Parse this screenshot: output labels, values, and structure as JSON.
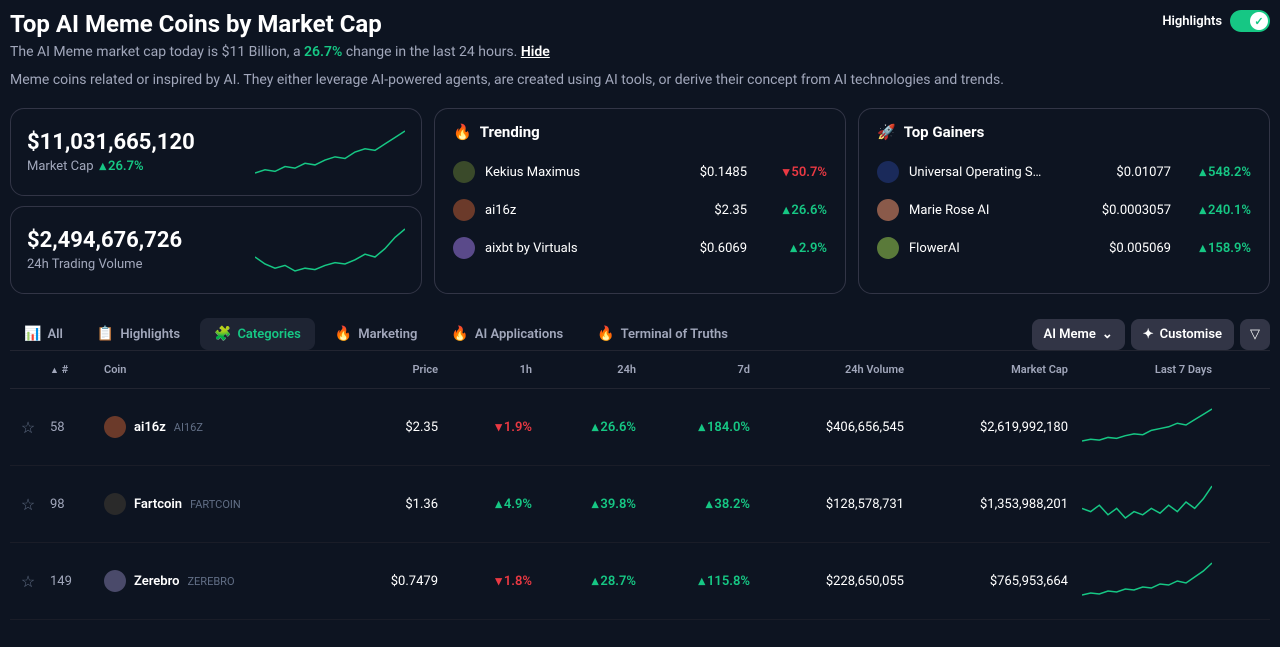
{
  "colors": {
    "bg": "#0d1421",
    "text": "#eef2f5",
    "muted": "#a1a7bb",
    "border": "#323546",
    "up": "#16c784",
    "down": "#ea3943",
    "pill": "#323546"
  },
  "header": {
    "title": "Top AI Meme Coins by Market Cap",
    "subtitle_pre": "The AI Meme market cap today is $11 Billion, a ",
    "subtitle_pct": "26.7%",
    "subtitle_post": " change in the last 24 hours. ",
    "hide": "Hide",
    "desc": "Meme coins related or inspired by AI. They either leverage AI-powered agents, are created using AI tools, or derive their concept from AI technologies and trends.",
    "highlights_label": "Highlights"
  },
  "stats": {
    "marketcap": {
      "value": "$11,031,665,120",
      "label": "Market Cap",
      "change": "26.7%",
      "dir": "up",
      "spark": [
        20,
        22,
        21,
        24,
        23,
        26,
        25,
        28,
        30,
        29,
        33,
        35,
        34,
        38,
        42,
        46
      ]
    },
    "volume": {
      "value": "$2,494,676,726",
      "label": "24h Trading Volume",
      "spark": [
        30,
        25,
        22,
        24,
        20,
        22,
        21,
        24,
        26,
        25,
        28,
        32,
        30,
        36,
        44,
        50
      ]
    }
  },
  "trending": {
    "title": "Trending",
    "icon": "🔥",
    "items": [
      {
        "name": "Kekius Maximus",
        "price": "$0.1485",
        "change": "50.7%",
        "dir": "down",
        "iconbg": "#3a4a2a"
      },
      {
        "name": "ai16z",
        "price": "$2.35",
        "change": "26.6%",
        "dir": "up",
        "iconbg": "#6b3a2a"
      },
      {
        "name": "aixbt by Virtuals",
        "price": "$0.6069",
        "change": "2.9%",
        "dir": "up",
        "iconbg": "#5a4a8a"
      }
    ]
  },
  "gainers": {
    "title": "Top Gainers",
    "icon": "🚀",
    "items": [
      {
        "name": "Universal Operating S…",
        "price": "$0.01077",
        "change": "548.2%",
        "dir": "up",
        "iconbg": "#1a2a5a"
      },
      {
        "name": "Marie Rose AI",
        "price": "$0.0003057",
        "change": "240.1%",
        "dir": "up",
        "iconbg": "#8a5a4a"
      },
      {
        "name": "FlowerAI",
        "price": "$0.005069",
        "change": "158.9%",
        "dir": "up",
        "iconbg": "#5a7a3a"
      }
    ]
  },
  "tabs": {
    "items": [
      {
        "id": "all",
        "label": "All",
        "icon": "📊"
      },
      {
        "id": "highlights",
        "label": "Highlights",
        "icon": "📋"
      },
      {
        "id": "categories",
        "label": "Categories",
        "icon": "🧩",
        "active": true
      },
      {
        "id": "marketing",
        "label": "Marketing",
        "icon": "🔥"
      },
      {
        "id": "ai-apps",
        "label": "AI Applications",
        "icon": "🔥"
      },
      {
        "id": "terminal",
        "label": "Terminal of Truths",
        "icon": "🔥"
      }
    ],
    "dropdown": "AI Meme",
    "customise": "Customise"
  },
  "table": {
    "columns": [
      "",
      "#",
      "Coin",
      "Price",
      "1h",
      "24h",
      "7d",
      "24h Volume",
      "Market Cap",
      "Last 7 Days"
    ],
    "rows": [
      {
        "rank": "58",
        "name": "ai16z",
        "sym": "AI16Z",
        "price": "$2.35",
        "h1": "1.9%",
        "h1dir": "down",
        "h24": "26.6%",
        "h24dir": "up",
        "d7": "184.0%",
        "d7dir": "up",
        "vol": "$406,656,545",
        "cap": "$2,619,992,180",
        "spark": [
          12,
          14,
          13,
          16,
          15,
          18,
          20,
          19,
          24,
          26,
          28,
          32,
          30,
          36,
          42,
          48
        ],
        "iconbg": "#6b3a2a"
      },
      {
        "rank": "98",
        "name": "Fartcoin",
        "sym": "FARTCOIN",
        "price": "$1.36",
        "h1": "4.9%",
        "h1dir": "up",
        "h24": "39.8%",
        "h24dir": "up",
        "d7": "38.2%",
        "d7dir": "up",
        "vol": "$128,578,731",
        "cap": "$1,353,988,201",
        "spark": [
          30,
          28,
          32,
          26,
          30,
          24,
          28,
          26,
          30,
          27,
          32,
          28,
          34,
          30,
          36,
          44
        ],
        "iconbg": "#2a2a2a"
      },
      {
        "rank": "149",
        "name": "Zerebro",
        "sym": "ZEREBRO",
        "price": "$0.7479",
        "h1": "1.8%",
        "h1dir": "down",
        "h24": "28.7%",
        "h24dir": "up",
        "d7": "115.8%",
        "d7dir": "up",
        "vol": "$228,650,055",
        "cap": "$765,953,664",
        "spark": [
          14,
          16,
          15,
          18,
          17,
          20,
          19,
          22,
          21,
          25,
          24,
          28,
          26,
          32,
          38,
          46
        ],
        "iconbg": "#4a4a6a"
      }
    ]
  }
}
